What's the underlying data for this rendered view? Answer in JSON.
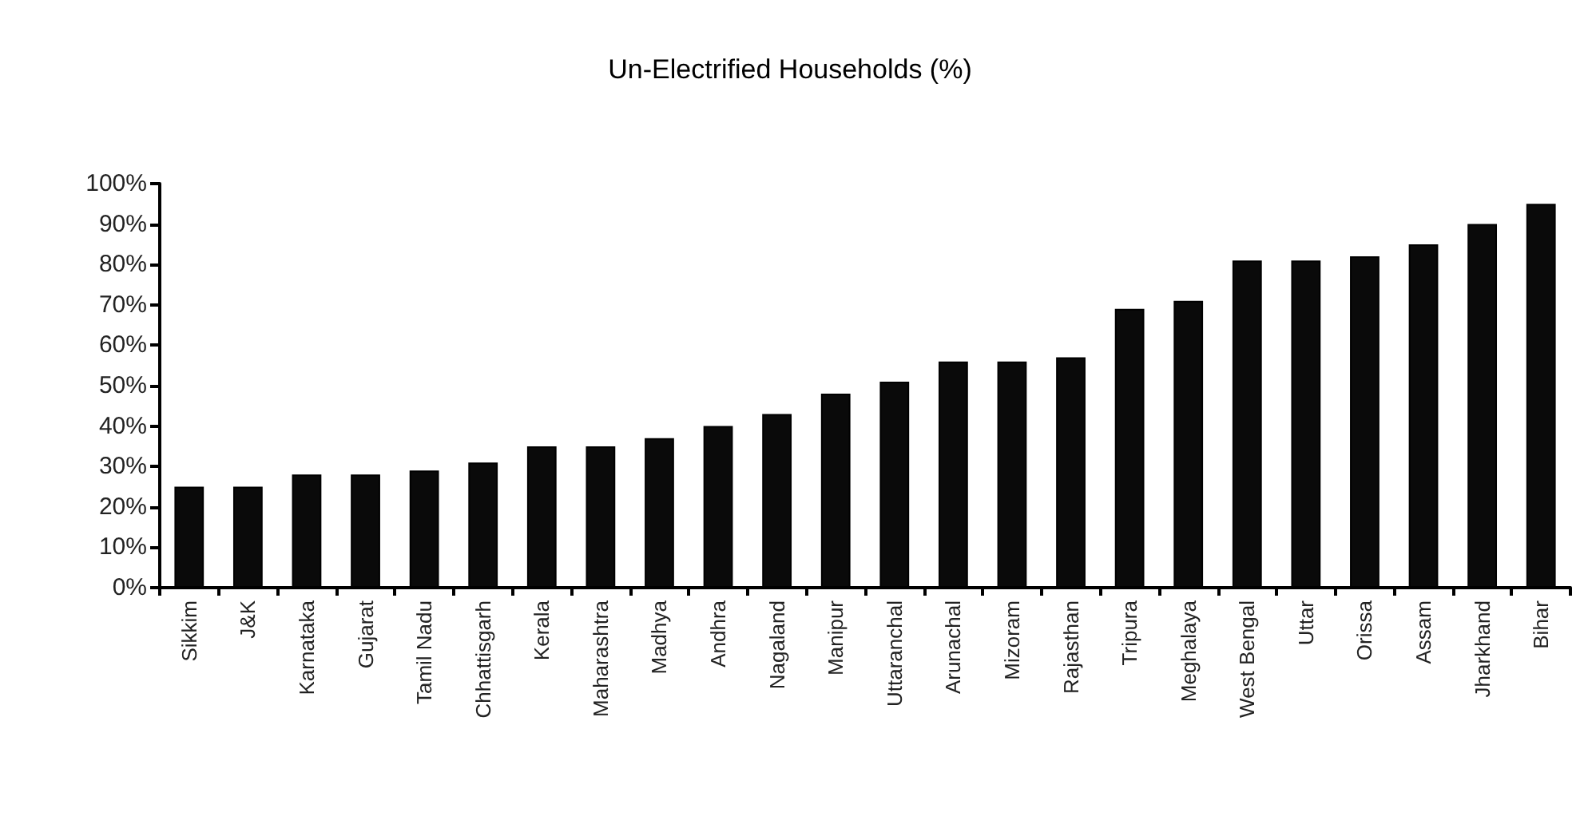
{
  "chart_data": {
    "type": "bar",
    "title": "Un-Electrified Households (%)",
    "categories": [
      "Sikkim",
      "J&K",
      "Karnataka",
      "Gujarat",
      "Tamil Nadu",
      "Chhattisgarh",
      "Kerala",
      "Maharashtra",
      "Madhya",
      "Andhra",
      "Nagaland",
      "Manipur",
      "Uttaranchal",
      "Arunachal",
      "Mizoram",
      "Rajasthan",
      "Tripura",
      "Meghalaya",
      "West Bengal",
      "Uttar",
      "Orissa",
      "Assam",
      "Jharkhand",
      "Bihar"
    ],
    "values": [
      25,
      25,
      28,
      28,
      29,
      31,
      35,
      35,
      37,
      40,
      43,
      48,
      51,
      56,
      56,
      57,
      69,
      71,
      81,
      81,
      82,
      85,
      90,
      95
    ],
    "color": "#0a0a0a",
    "ylim": [
      0,
      100
    ],
    "yticks": [
      {
        "value": 0,
        "label": "0%"
      },
      {
        "value": 10,
        "label": "10%"
      },
      {
        "value": 20,
        "label": "20%"
      },
      {
        "value": 30,
        "label": "30%"
      },
      {
        "value": 40,
        "label": "40%"
      },
      {
        "value": 50,
        "label": "50%"
      },
      {
        "value": 60,
        "label": "60%"
      },
      {
        "value": 70,
        "label": "70%"
      },
      {
        "value": 80,
        "label": "80%"
      },
      {
        "value": 90,
        "label": "90%"
      },
      {
        "value": 100,
        "label": "100%"
      }
    ],
    "grid": false
  }
}
